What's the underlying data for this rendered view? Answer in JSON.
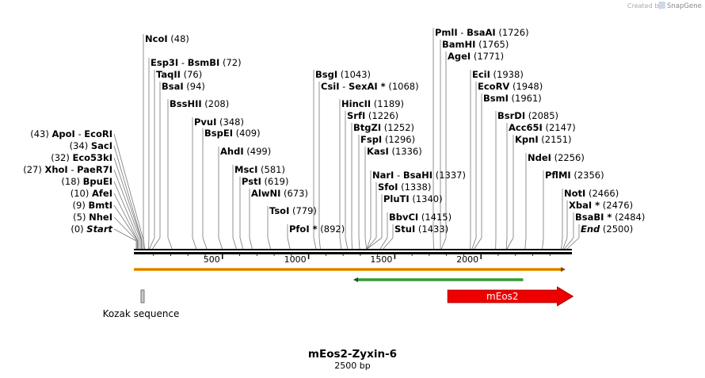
{
  "credit": {
    "prefix": "Created by",
    "brand": "SnapGene"
  },
  "map": {
    "title": "mEos2-Zyxin-6",
    "length_label": "2500 bp",
    "length_bp": 2500,
    "ticks": [
      {
        "bp": 500,
        "label": "500"
      },
      {
        "bp": 1000,
        "label": "1000"
      },
      {
        "bp": 1500,
        "label": "1500"
      },
      {
        "bp": 2000,
        "label": "2000"
      }
    ]
  },
  "sites_left": [
    {
      "name": "ApoI",
      "name2": "EcoRI",
      "pos": "(43)",
      "bp": 43
    },
    {
      "name": "SacI",
      "pos": "(34)",
      "bp": 34
    },
    {
      "name": "Eco53kI",
      "pos": "(32)",
      "bp": 32
    },
    {
      "name": "XhoI",
      "name2": "PaeR7I",
      "pos": "(27)",
      "bp": 27
    },
    {
      "name": "BpuEI",
      "pos": "(18)",
      "bp": 18
    },
    {
      "name": "AfeI",
      "pos": "(10)",
      "bp": 10
    },
    {
      "name": "BmtI",
      "pos": "(9)",
      "bp": 9
    },
    {
      "name": "NheI",
      "pos": "(5)",
      "bp": 5
    },
    {
      "name": "Start",
      "pos": "(0)",
      "bp": 0,
      "italic": true
    }
  ],
  "sites_right": [
    {
      "name": "NcoI",
      "pos": "(48)",
      "bp": 48
    },
    {
      "name": "Esp3I",
      "name2": "BsmBI",
      "pos": "(72)",
      "bp": 72
    },
    {
      "name": "TaqII",
      "pos": "(76)",
      "bp": 76
    },
    {
      "name": "BsaI",
      "pos": "(94)",
      "bp": 94
    },
    {
      "name": "BssHII",
      "pos": "(208)",
      "bp": 208
    },
    {
      "name": "PvuI",
      "pos": "(348)",
      "bp": 348
    },
    {
      "name": "BspEI",
      "pos": "(409)",
      "bp": 409
    },
    {
      "name": "AhdI",
      "pos": "(499)",
      "bp": 499
    },
    {
      "name": "MscI",
      "pos": "(581)",
      "bp": 581
    },
    {
      "name": "PstI",
      "pos": "(619)",
      "bp": 619
    },
    {
      "name": "AlwNI",
      "pos": "(673)",
      "bp": 673
    },
    {
      "name": "TsoI",
      "pos": "(779)",
      "bp": 779
    },
    {
      "name": "PfoI *",
      "pos": "(892)",
      "bp": 892
    },
    {
      "name": "BsgI",
      "pos": "(1043)",
      "bp": 1043
    },
    {
      "name": "CsiI",
      "name2": "SexAI *",
      "pos": "(1068)",
      "bp": 1068
    },
    {
      "name": "HincII",
      "pos": "(1189)",
      "bp": 1189
    },
    {
      "name": "SrfI",
      "pos": "(1226)",
      "bp": 1226
    },
    {
      "name": "BtgZI",
      "pos": "(1252)",
      "bp": 1252
    },
    {
      "name": "FspI",
      "pos": "(1296)",
      "bp": 1296
    },
    {
      "name": "KasI",
      "pos": "(1336)",
      "bp": 1336
    },
    {
      "name": "NarI",
      "name2": "BsaHI",
      "pos": "(1337)",
      "bp": 1337
    },
    {
      "name": "SfoI",
      "pos": "(1338)",
      "bp": 1338
    },
    {
      "name": "PluTI",
      "pos": "(1340)",
      "bp": 1340
    },
    {
      "name": "BbvCI",
      "pos": "(1415)",
      "bp": 1415
    },
    {
      "name": "StuI",
      "pos": "(1433)",
      "bp": 1433
    },
    {
      "name": "PmlI",
      "name2": "BsaAI",
      "pos": "(1726)",
      "bp": 1726
    },
    {
      "name": "BamHI",
      "pos": "(1765)",
      "bp": 1765
    },
    {
      "name": "AgeI",
      "pos": "(1771)",
      "bp": 1771
    },
    {
      "name": "EciI",
      "pos": "(1938)",
      "bp": 1938
    },
    {
      "name": "EcoRV",
      "pos": "(1948)",
      "bp": 1948
    },
    {
      "name": "BsmI",
      "pos": "(1961)",
      "bp": 1961
    },
    {
      "name": "BsrDI",
      "pos": "(2085)",
      "bp": 2085
    },
    {
      "name": "Acc65I",
      "pos": "(2147)",
      "bp": 2147
    },
    {
      "name": "KpnI",
      "pos": "(2151)",
      "bp": 2151
    },
    {
      "name": "NdeI",
      "pos": "(2256)",
      "bp": 2256
    },
    {
      "name": "PflMI",
      "pos": "(2356)",
      "bp": 2356
    },
    {
      "name": "NotI",
      "pos": "(2466)",
      "bp": 2466
    },
    {
      "name": "XbaI *",
      "pos": "(2476)",
      "bp": 2476
    },
    {
      "name": "BsaBI *",
      "pos": "(2484)",
      "bp": 2484
    },
    {
      "name": "End",
      "pos": "(2500)",
      "bp": 2500,
      "italic": true
    }
  ],
  "features": {
    "orange_arrow": {
      "start_bp": 0,
      "end_bp": 2500,
      "color": "#f5a623"
    },
    "green_arrow": {
      "start_bp": 1250,
      "end_bp": 2300,
      "color": "#5cb85c"
    },
    "kozak": {
      "label": "Kozak sequence",
      "bp": 50
    },
    "meos2": {
      "label": "mEos2",
      "start_bp": 1770,
      "end_bp": 2470,
      "color": "#ee0000"
    }
  }
}
